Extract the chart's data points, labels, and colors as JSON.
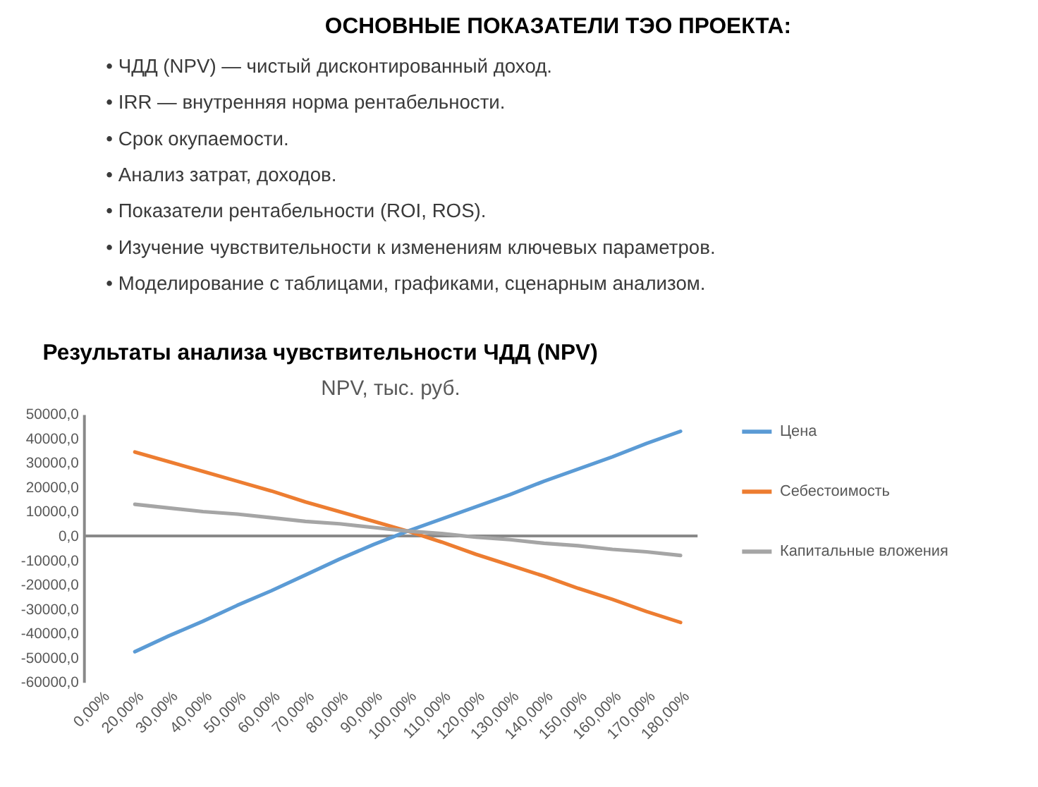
{
  "chart_data": [
    {
      "type": "other",
      "title": "ОСНОВНЫЕ ПОКАЗАТЕЛИ ТЭО ПРОЕКТА:",
      "annotations": [
        "• ЧДД (NPV) — чистый дисконтированный доход.",
        "• IRR — внутренняя норма рентабельности.",
        "• Срок окупаемости.",
        "• Анализ затрат, доходов.",
        "• Показатели рентабельности (ROI, ROS).",
        "• Изучение чувствительности к изменениям ключевых параметров.",
        "• Моделирование с таблицами, графиками, сценарным анализом."
      ]
    },
    {
      "type": "line",
      "title": "Результаты анализа чувствительности ЧДД (NPV)",
      "subtitle": "NPV, тыс. руб.",
      "categories": [
        "0,00%",
        "20,00%",
        "30,00%",
        "40,00%",
        "50,00%",
        "60,00%",
        "70,00%",
        "80,00%",
        "90,00%",
        "100,00%",
        "110,00%",
        "120,00%",
        "130,00%",
        "140,00%",
        "150,00%",
        "160,00%",
        "170,00%",
        "180,00%"
      ],
      "ylim": [
        -60000,
        50000
      ],
      "yticks": [
        {
          "value": -60000,
          "label": "-60000,0"
        },
        {
          "value": -50000,
          "label": "-50000,0"
        },
        {
          "value": -40000,
          "label": "-40000,0"
        },
        {
          "value": -30000,
          "label": "-30000,0"
        },
        {
          "value": -20000,
          "label": "-20000,0"
        },
        {
          "value": -10000,
          "label": "-10000,0"
        },
        {
          "value": 0,
          "label": "0,0"
        },
        {
          "value": 10000,
          "label": "10000,0"
        },
        {
          "value": 20000,
          "label": "20000,0"
        },
        {
          "value": 30000,
          "label": "30000,0"
        },
        {
          "value": 40000,
          "label": "40000,0"
        },
        {
          "value": 50000,
          "label": "50000,0"
        }
      ],
      "series": [
        {
          "name": "Цена",
          "color": "#5b9bd5",
          "values": [
            null,
            -47500,
            -41000,
            -35000,
            -28500,
            -22500,
            -16000,
            -9500,
            -3500,
            2000,
            7000,
            12000,
            17000,
            22500,
            27500,
            32500,
            38000,
            43000
          ]
        },
        {
          "name": "Себестоимость",
          "color": "#ed7d31",
          "values": [
            null,
            34500,
            30500,
            26500,
            22500,
            18500,
            14000,
            10000,
            6000,
            2000,
            -2500,
            -7500,
            -12000,
            -16500,
            -21500,
            -26000,
            -31000,
            -35500
          ]
        },
        {
          "name": "Капитальные вложения",
          "color": "#a5a5a5",
          "values": [
            null,
            13000,
            11500,
            10000,
            9000,
            7500,
            6000,
            5000,
            3500,
            2000,
            1000,
            -500,
            -1500,
            -3000,
            -4000,
            -5500,
            -6500,
            -8000
          ]
        }
      ],
      "ref_lines": [
        {
          "axis": "y",
          "value": 0,
          "color": "#898989"
        }
      ],
      "legend": "right",
      "grid": false,
      "line_style": "solid"
    }
  ]
}
